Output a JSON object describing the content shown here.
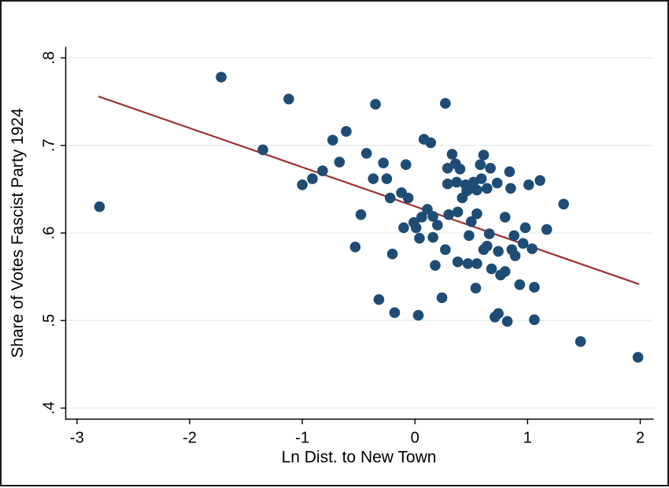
{
  "figure": {
    "background": "#ffffff",
    "frame_color": "#1a1a1a"
  },
  "chart_data": {
    "type": "scatter",
    "title": "",
    "xlabel": "Ln Dist. to New Town",
    "ylabel": "Share of Votes Fascist Party 1924",
    "xlim": [
      -3.1,
      2.105
    ],
    "ylim": [
      0.3874,
      0.8126
    ],
    "xticks": [
      -3,
      -2,
      -1,
      0,
      1,
      2
    ],
    "xtick_labels": [
      "-3",
      "-2",
      "-1",
      "0",
      "1",
      "2"
    ],
    "yticks": [
      0.4,
      0.5,
      0.6,
      0.7,
      0.8
    ],
    "ytick_labels": [
      ".4",
      ".5",
      ".6",
      ".7",
      ".8"
    ],
    "grid": "horizontal",
    "legend": "none",
    "point_color": "#1e4c75",
    "line_color": "#9e3134",
    "grid_color": "#e6eff1",
    "axis_color": "#000000",
    "points": [
      [
        -1.72,
        0.778
      ],
      [
        -1.12,
        0.753
      ],
      [
        -0.35,
        0.747
      ],
      [
        0.27,
        0.748
      ],
      [
        -0.61,
        0.716
      ],
      [
        -0.73,
        0.706
      ],
      [
        0.08,
        0.707
      ],
      [
        0.14,
        0.703
      ],
      [
        -1.35,
        0.695
      ],
      [
        -0.43,
        0.691
      ],
      [
        0.33,
        0.69
      ],
      [
        -0.67,
        0.681
      ],
      [
        -0.28,
        0.68
      ],
      [
        -0.08,
        0.678
      ],
      [
        0.29,
        0.674
      ],
      [
        0.36,
        0.679
      ],
      [
        0.4,
        0.673
      ],
      [
        0.61,
        0.689
      ],
      [
        0.58,
        0.678
      ],
      [
        0.67,
        0.674
      ],
      [
        0.84,
        0.67
      ],
      [
        -2.8,
        0.63
      ],
      [
        -1.0,
        0.655
      ],
      [
        -0.91,
        0.662
      ],
      [
        -0.82,
        0.671
      ],
      [
        -0.37,
        0.662
      ],
      [
        -0.25,
        0.662
      ],
      [
        -0.22,
        0.64
      ],
      [
        -0.12,
        0.646
      ],
      [
        -0.06,
        0.64
      ],
      [
        -0.48,
        0.621
      ],
      [
        -0.1,
        0.606
      ],
      [
        -0.01,
        0.612
      ],
      [
        0.01,
        0.606
      ],
      [
        0.04,
        0.594
      ],
      [
        0.11,
        0.627
      ],
      [
        0.06,
        0.618
      ],
      [
        0.16,
        0.619
      ],
      [
        0.16,
        0.595
      ],
      [
        0.2,
        0.609
      ],
      [
        0.3,
        0.621
      ],
      [
        0.38,
        0.624
      ],
      [
        0.27,
        0.581
      ],
      [
        0.18,
        0.563
      ],
      [
        -0.53,
        0.584
      ],
      [
        -0.2,
        0.576
      ],
      [
        0.24,
        0.526
      ],
      [
        -0.32,
        0.524
      ],
      [
        0.29,
        0.656
      ],
      [
        0.37,
        0.658
      ],
      [
        0.59,
        0.662
      ],
      [
        0.45,
        0.655
      ],
      [
        0.52,
        0.658
      ],
      [
        0.64,
        0.651
      ],
      [
        0.48,
        0.65
      ],
      [
        0.46,
        0.648
      ],
      [
        0.42,
        0.64
      ],
      [
        0.85,
        0.651
      ],
      [
        1.01,
        0.655
      ],
      [
        1.11,
        0.66
      ],
      [
        0.73,
        0.657
      ],
      [
        1.32,
        0.633
      ],
      [
        0.55,
        0.622
      ],
      [
        0.5,
        0.613
      ],
      [
        0.8,
        0.618
      ],
      [
        0.98,
        0.606
      ],
      [
        1.17,
        0.604
      ],
      [
        0.48,
        0.597
      ],
      [
        0.66,
        0.599
      ],
      [
        0.88,
        0.597
      ],
      [
        0.96,
        0.588
      ],
      [
        0.64,
        0.585
      ],
      [
        0.61,
        0.581
      ],
      [
        0.74,
        0.579
      ],
      [
        0.86,
        0.581
      ],
      [
        0.89,
        0.574
      ],
      [
        1.04,
        0.582
      ],
      [
        0.55,
        0.649
      ],
      [
        0.38,
        0.567
      ],
      [
        0.47,
        0.565
      ],
      [
        0.55,
        0.565
      ],
      [
        0.68,
        0.559
      ],
      [
        0.76,
        0.552
      ],
      [
        0.8,
        0.556
      ],
      [
        0.93,
        0.541
      ],
      [
        0.54,
        0.537
      ],
      [
        1.06,
        0.538
      ],
      [
        -0.18,
        0.509
      ],
      [
        0.03,
        0.506
      ],
      [
        0.71,
        0.504
      ],
      [
        0.74,
        0.508
      ],
      [
        0.82,
        0.499
      ],
      [
        1.06,
        0.501
      ],
      [
        1.47,
        0.476
      ],
      [
        1.98,
        0.458
      ]
    ],
    "trend_line": {
      "x1": -2.81,
      "y1": 0.756,
      "x2": 1.99,
      "y2": 0.5415
    }
  }
}
